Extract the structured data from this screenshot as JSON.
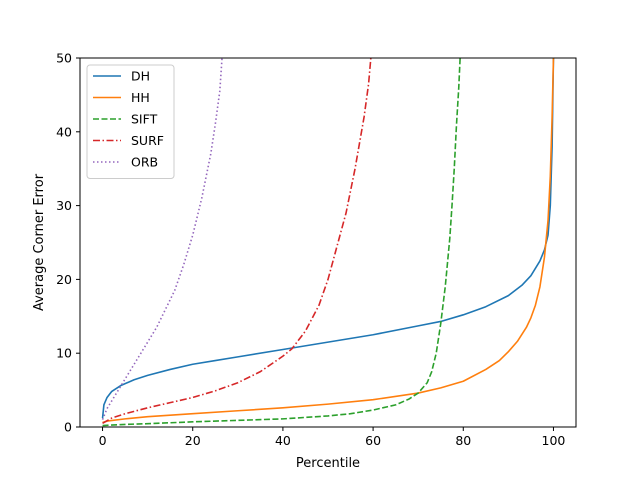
{
  "chart_data": {
    "type": "line",
    "title": "",
    "xlabel": "Percentile",
    "ylabel": "Average Corner Error",
    "xlim": [
      -5,
      105
    ],
    "ylim": [
      0,
      50
    ],
    "xticks": [
      0,
      20,
      40,
      60,
      80,
      100
    ],
    "yticks": [
      0,
      10,
      20,
      30,
      40,
      50
    ],
    "grid": false,
    "legend_position": "upper-left",
    "series": [
      {
        "name": "DH",
        "color": "#1f77b4",
        "linestyle": "solid",
        "x": [
          0,
          0.3,
          1,
          2,
          4,
          7,
          10,
          15,
          20,
          25,
          30,
          40,
          50,
          60,
          70,
          75,
          80,
          85,
          90,
          93,
          95,
          97,
          98,
          98.8,
          99.3,
          99.7,
          100
        ],
        "y": [
          1.2,
          3.0,
          4.0,
          4.8,
          5.6,
          6.4,
          7.0,
          7.8,
          8.5,
          9.0,
          9.5,
          10.5,
          11.5,
          12.5,
          13.7,
          14.3,
          15.2,
          16.3,
          17.8,
          19.2,
          20.5,
          22.5,
          24.0,
          26.0,
          30.0,
          38.0,
          50.0
        ]
      },
      {
        "name": "HH",
        "color": "#ff7f0e",
        "linestyle": "solid",
        "x": [
          0,
          1,
          5,
          10,
          20,
          30,
          40,
          50,
          60,
          70,
          75,
          80,
          85,
          88,
          90,
          92,
          94,
          95,
          96,
          97,
          98,
          98.8,
          99.3,
          99.7,
          100
        ],
        "y": [
          0.6,
          0.8,
          1.1,
          1.4,
          1.8,
          2.2,
          2.6,
          3.1,
          3.7,
          4.6,
          5.3,
          6.2,
          7.8,
          9.0,
          10.2,
          11.6,
          13.5,
          14.8,
          16.5,
          19.0,
          23.0,
          28.0,
          34.0,
          42.0,
          50.0
        ]
      },
      {
        "name": "SIFT",
        "color": "#2ca02c",
        "linestyle": "dashed",
        "x": [
          0,
          5,
          10,
          20,
          30,
          40,
          50,
          55,
          60,
          65,
          68,
          70,
          72,
          73,
          74,
          75,
          76,
          77,
          77.5,
          78,
          78.5,
          79,
          79.3
        ],
        "y": [
          0.2,
          0.35,
          0.45,
          0.7,
          0.9,
          1.1,
          1.5,
          1.8,
          2.3,
          3.0,
          3.8,
          4.6,
          6.0,
          7.5,
          10.0,
          14.0,
          19.0,
          25.5,
          30.0,
          35.0,
          41.0,
          46.0,
          50.0
        ]
      },
      {
        "name": "SURF",
        "color": "#d62728",
        "linestyle": "dashdot",
        "x": [
          0,
          2,
          5,
          10,
          15,
          20,
          25,
          30,
          35,
          40,
          42,
          45,
          48,
          50,
          52,
          54,
          56,
          58,
          59,
          59.5
        ],
        "y": [
          0.5,
          1.2,
          1.8,
          2.6,
          3.3,
          4.0,
          4.9,
          6.0,
          7.5,
          9.6,
          10.6,
          13.0,
          16.5,
          20.0,
          24.5,
          29.0,
          35.0,
          42.0,
          46.5,
          50.0
        ]
      },
      {
        "name": "ORB",
        "color": "#9467bd",
        "linestyle": "dotted",
        "x": [
          0,
          1,
          2,
          4,
          6,
          8,
          10,
          12,
          14,
          16,
          18,
          20,
          22,
          24,
          25,
          26,
          26.5
        ],
        "y": [
          1.0,
          2.5,
          3.5,
          5.5,
          7.5,
          9.5,
          11.5,
          13.5,
          16.0,
          18.5,
          22.0,
          26.0,
          31.0,
          37.0,
          41.0,
          45.5,
          50.0
        ]
      }
    ]
  }
}
